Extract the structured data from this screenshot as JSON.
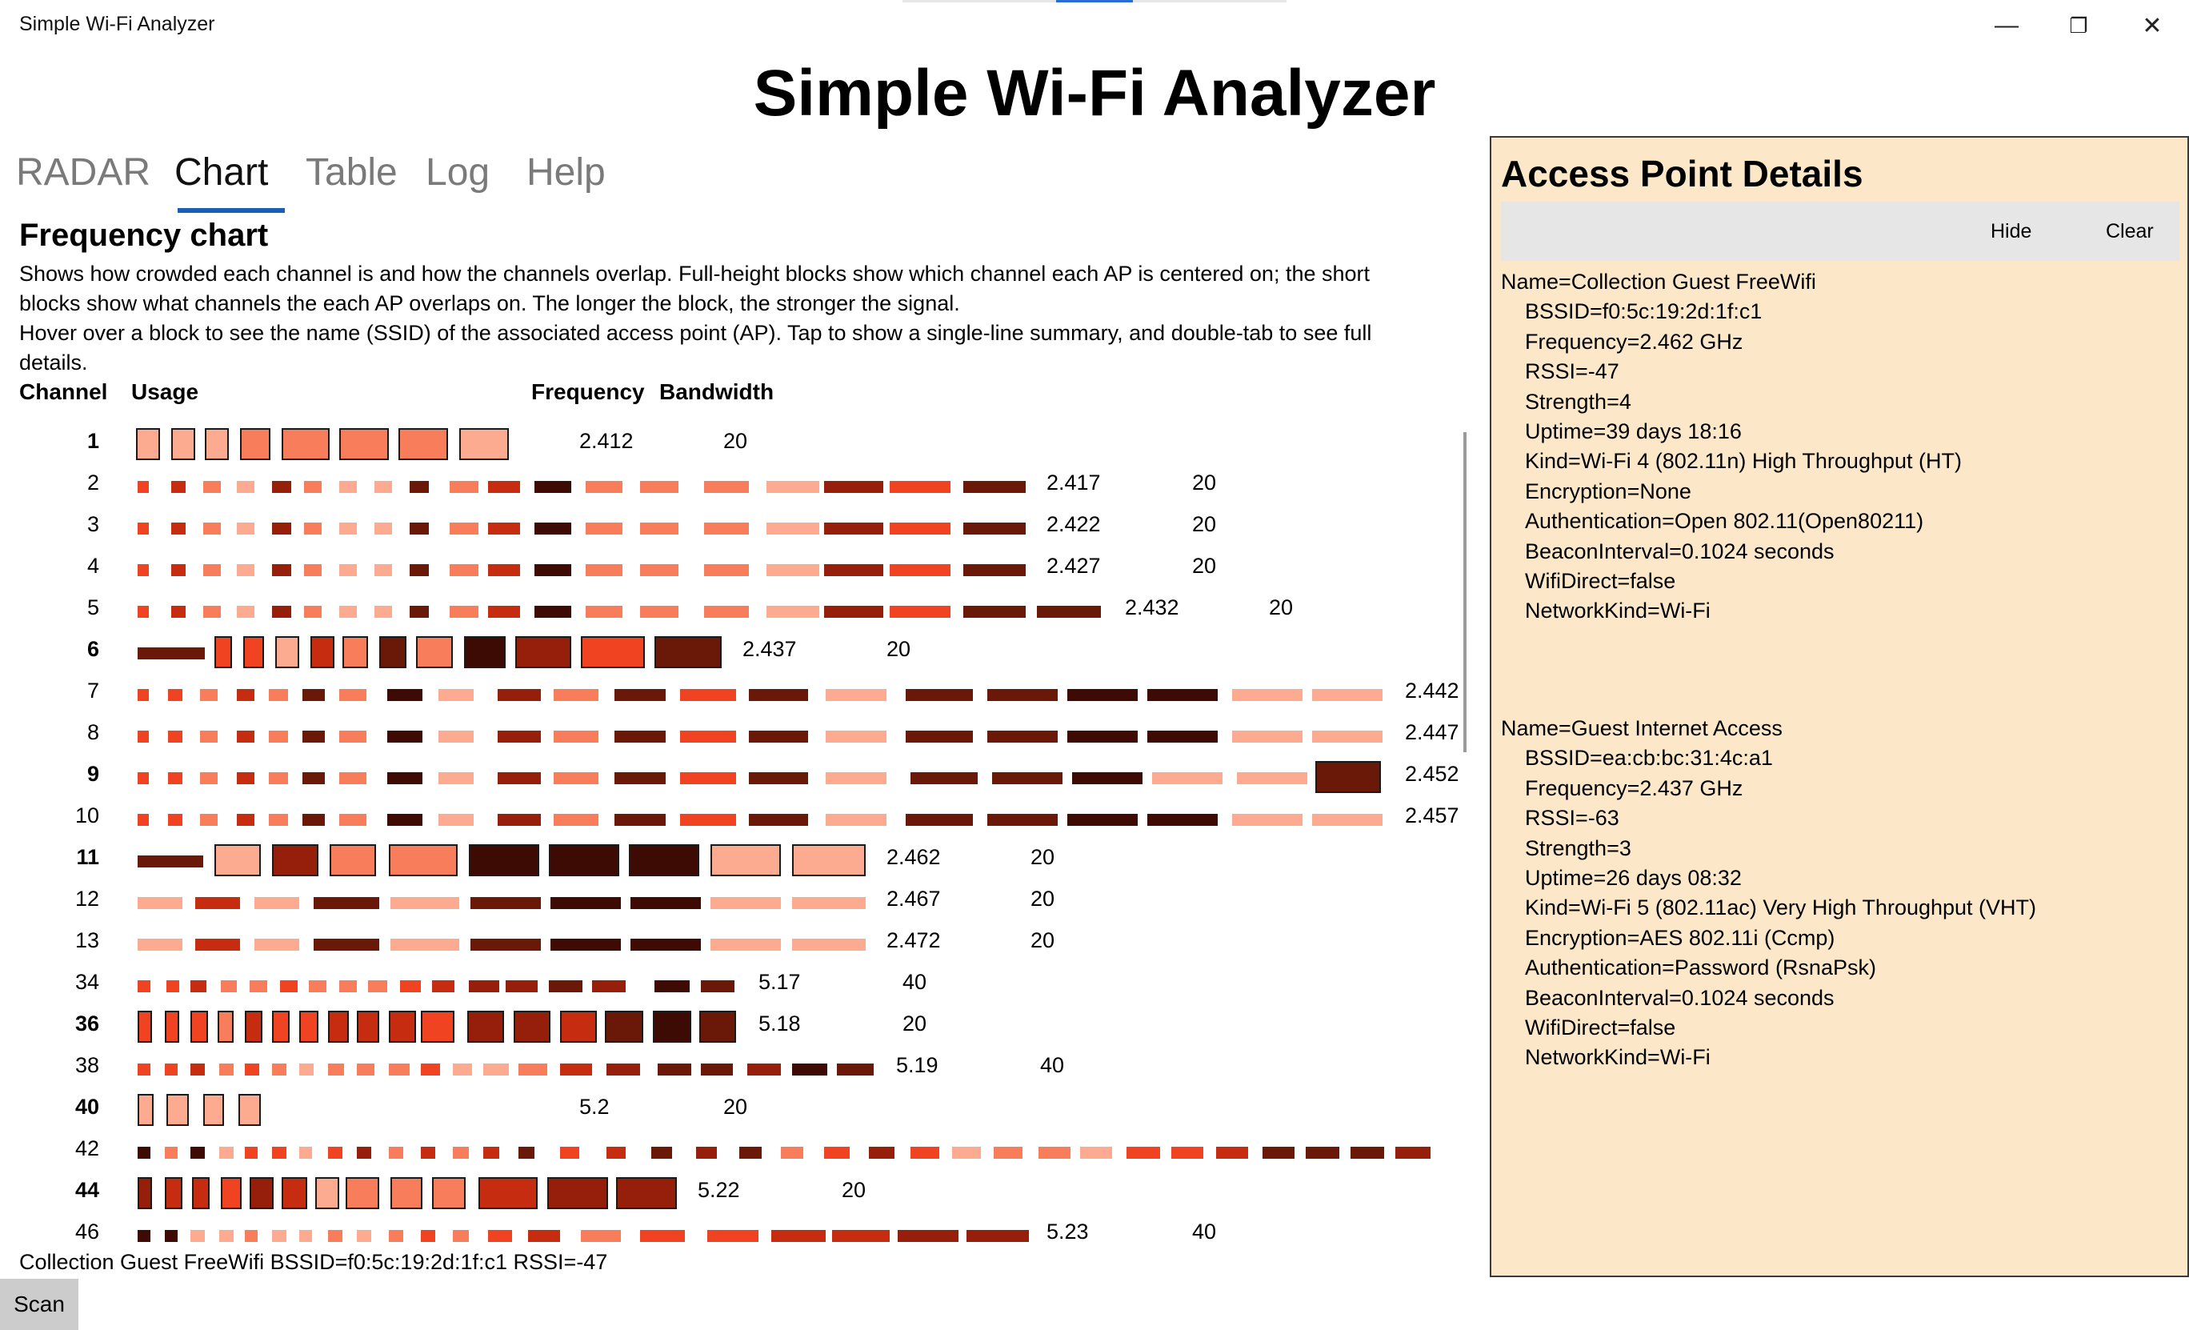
{
  "window": {
    "title": "Simple Wi-Fi Analyzer",
    "minimize_glyph": "—",
    "maximize_glyph": "❐",
    "close_glyph": "✕"
  },
  "app_title": "Simple Wi-Fi Analyzer",
  "tabs": [
    {
      "label": "RADAR",
      "active": false
    },
    {
      "label": "Chart",
      "active": true
    },
    {
      "label": "Table",
      "active": false
    },
    {
      "label": "Log",
      "active": false
    },
    {
      "label": "Help",
      "active": false
    }
  ],
  "chart_section": {
    "heading": "Frequency chart",
    "description_1": "Shows how crowded each channel is and how the channels overlap. Full-height blocks show which channel each AP is centered on; the short blocks show what channels the each AP overlaps on. The longer the block, the stronger the signal.",
    "description_2": "Hover over a block to see the name (SSID) of the associated access point (AP). Tap to show a single-line summary, and double-tab to see full details.",
    "headers": {
      "channel": "Channel",
      "usage": "Usage",
      "frequency": "Frequency",
      "bandwidth": "Bandwidth"
    }
  },
  "colors": {
    "c1": "#fcab91",
    "c2": "#f87d5a",
    "c3": "#ef4321",
    "c4": "#c52c10",
    "c5": "#951f0b",
    "c6": "#6a1808",
    "c7": "#3e0a04",
    "panel": "#fde7c9",
    "tab_underline": "#1b5fb5"
  },
  "chart_data": {
    "type": "table",
    "rows": [
      {
        "channel": "1",
        "frequency": "2.412",
        "bandwidth": "20",
        "centered": true
      },
      {
        "channel": "2",
        "frequency": "2.417",
        "bandwidth": "20",
        "centered": false
      },
      {
        "channel": "3",
        "frequency": "2.422",
        "bandwidth": "20",
        "centered": false
      },
      {
        "channel": "4",
        "frequency": "2.427",
        "bandwidth": "20",
        "centered": false
      },
      {
        "channel": "5",
        "frequency": "2.432",
        "bandwidth": "20",
        "centered": false
      },
      {
        "channel": "6",
        "frequency": "2.437",
        "bandwidth": "20",
        "centered": true
      },
      {
        "channel": "7",
        "frequency": "2.442",
        "bandwidth": "",
        "centered": false
      },
      {
        "channel": "8",
        "frequency": "2.447",
        "bandwidth": "",
        "centered": false
      },
      {
        "channel": "9",
        "frequency": "2.452",
        "bandwidth": "",
        "centered": true
      },
      {
        "channel": "10",
        "frequency": "2.457",
        "bandwidth": "",
        "centered": false
      },
      {
        "channel": "11",
        "frequency": "2.462",
        "bandwidth": "20",
        "centered": true
      },
      {
        "channel": "12",
        "frequency": "2.467",
        "bandwidth": "20",
        "centered": false
      },
      {
        "channel": "13",
        "frequency": "2.472",
        "bandwidth": "20",
        "centered": false
      },
      {
        "channel": "34",
        "frequency": "5.17",
        "bandwidth": "40",
        "centered": false
      },
      {
        "channel": "36",
        "frequency": "5.18",
        "bandwidth": "20",
        "centered": true
      },
      {
        "channel": "38",
        "frequency": "5.19",
        "bandwidth": "40",
        "centered": false
      },
      {
        "channel": "40",
        "frequency": "5.2",
        "bandwidth": "20",
        "centered": true
      },
      {
        "channel": "42",
        "frequency": "",
        "bandwidth": "",
        "centered": false
      },
      {
        "channel": "44",
        "frequency": "5.22",
        "bandwidth": "20",
        "centered": true
      },
      {
        "channel": "46",
        "frequency": "5.23",
        "bandwidth": "40",
        "centered": false
      }
    ]
  },
  "status_line": "Collection Guest FreeWifi BSSID=f0:5c:19:2d:1f:c1 RSSI=-47",
  "scan_button": "Scan",
  "details": {
    "title": "Access Point Details",
    "hide_label": "Hide",
    "clear_label": "Clear",
    "aps": [
      {
        "name": "Name=Collection Guest FreeWifi",
        "lines": [
          "BSSID=f0:5c:19:2d:1f:c1",
          "Frequency=2.462 GHz",
          "RSSI=-47",
          "Strength=4",
          "Uptime=39 days 18:16",
          "Kind=Wi-Fi 4 (802.11n) High Throughput (HT)",
          "Encryption=None",
          "Authentication=Open 802.11(Open80211)",
          "BeaconInterval=0.1024 seconds",
          "WifiDirect=false",
          "NetworkKind=Wi-Fi"
        ]
      },
      {
        "name": "Name=Guest Internet Access",
        "lines": [
          "BSSID=ea:cb:bc:31:4c:a1",
          "Frequency=2.437 GHz",
          "RSSI=-63",
          "Strength=3",
          "Uptime=26 days 08:32",
          "Kind=Wi-Fi 5 (802.11ac) Very High Throughput (VHT)",
          "Encryption=AES 802.11i (Ccmp)",
          "Authentication=Password (RsnaPsk)",
          "BeaconInterval=0.1024 seconds",
          "WifiDirect=false",
          "NetworkKind=Wi-Fi"
        ]
      }
    ]
  }
}
